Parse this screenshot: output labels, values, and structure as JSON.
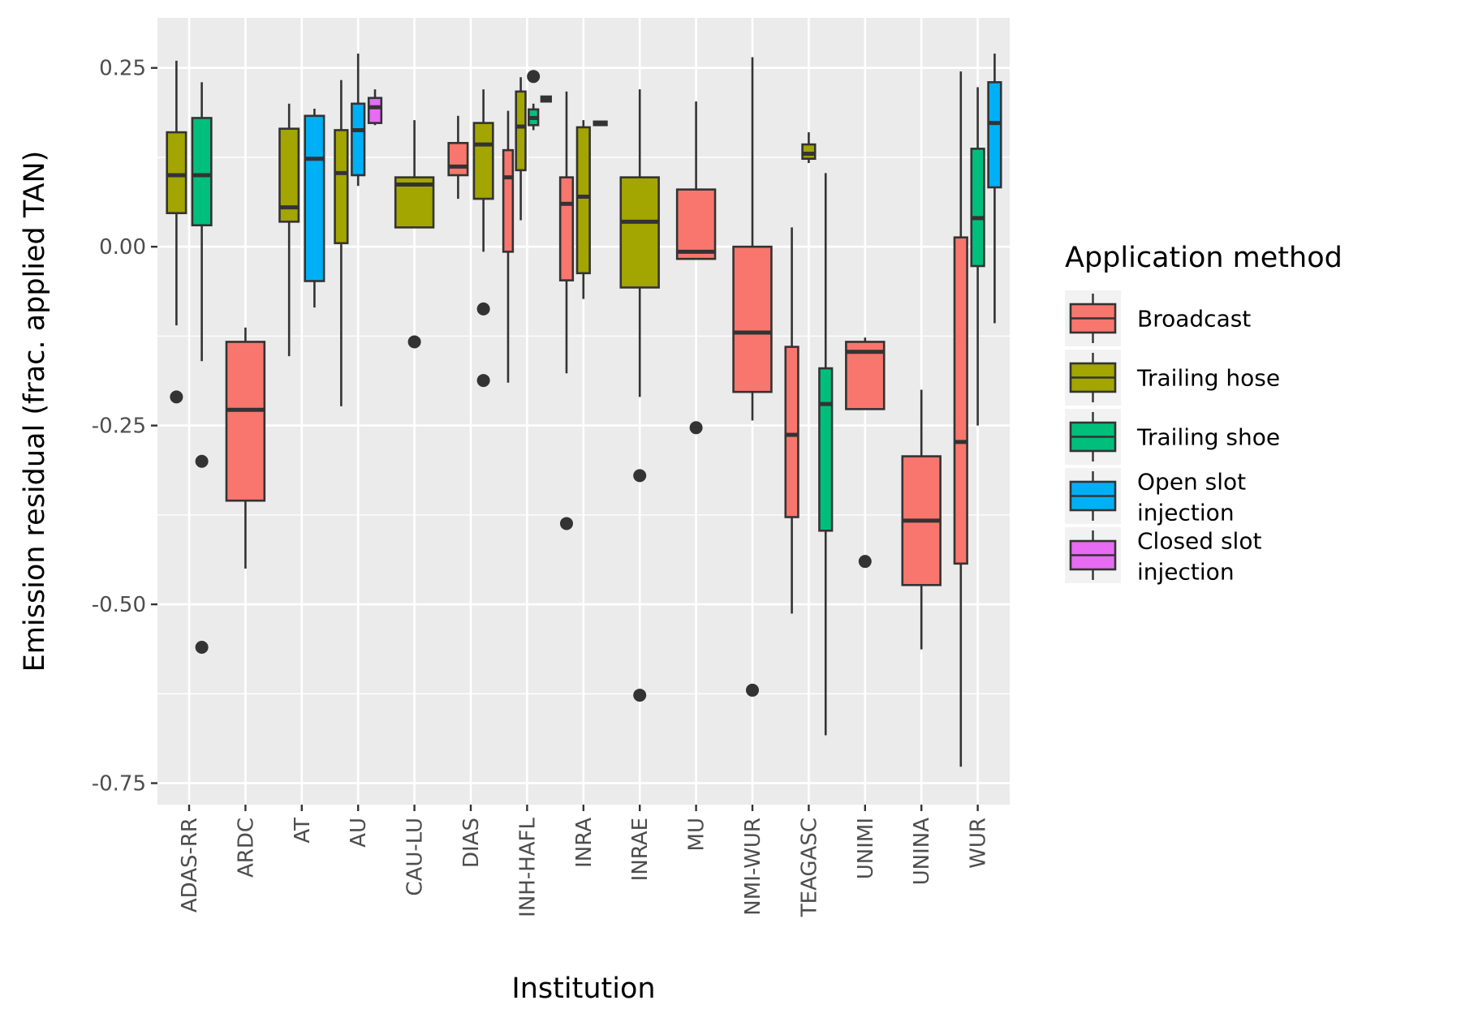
{
  "chart_data": {
    "type": "boxplot",
    "xlabel": "Institution",
    "ylabel": "Emission residual (frac. applied TAN)",
    "ylim": [
      -0.78,
      0.32
    ],
    "yticks": [
      0.25,
      0.0,
      -0.25,
      -0.5,
      -0.75
    ],
    "ytick_labels": [
      "0.25",
      "0.00",
      "-0.25",
      "-0.50",
      "-0.75"
    ],
    "grid": true,
    "legend_position": "right",
    "legend": {
      "title": "Application method",
      "entries": [
        {
          "key": "Broadcast",
          "label_lines": [
            "Broadcast"
          ],
          "color": "#F8766D"
        },
        {
          "key": "Trailing hose",
          "label_lines": [
            "Trailing hose"
          ],
          "color": "#A3A500"
        },
        {
          "key": "Trailing shoe",
          "label_lines": [
            "Trailing shoe"
          ],
          "color": "#00BF7D"
        },
        {
          "key": "Open slot injection",
          "label_lines": [
            "Open slot",
            "injection"
          ],
          "color": "#00B0F6"
        },
        {
          "key": "Closed slot injection",
          "label_lines": [
            "Closed slot",
            "injection"
          ],
          "color": "#E76BF3"
        }
      ]
    },
    "categories": [
      "ADAS-RR",
      "ARDC",
      "AT",
      "AU",
      "CAU-LU",
      "DIAS",
      "INH-HAFL",
      "INRA",
      "INRAE",
      "MU",
      "NMI-WUR",
      "TEAGASC",
      "UNIMI",
      "UNINA",
      "WUR"
    ],
    "groups": [
      {
        "category": "ADAS-RR",
        "boxes": [
          {
            "series": "Trailing hose",
            "whisker_low": -0.11,
            "q1": 0.047,
            "median": 0.1,
            "q3": 0.16,
            "whisker_high": 0.26,
            "outliers": [
              -0.21
            ]
          },
          {
            "series": "Trailing shoe",
            "whisker_low": -0.16,
            "q1": 0.03,
            "median": 0.1,
            "q3": 0.18,
            "whisker_high": 0.23,
            "outliers": [
              -0.3,
              -0.56
            ]
          }
        ]
      },
      {
        "category": "ARDC",
        "boxes": [
          {
            "series": "Broadcast",
            "whisker_low": -0.45,
            "q1": -0.355,
            "median": -0.228,
            "q3": -0.133,
            "whisker_high": -0.113,
            "outliers": []
          }
        ]
      },
      {
        "category": "AT",
        "boxes": [
          {
            "series": "Trailing hose",
            "whisker_low": -0.153,
            "q1": 0.035,
            "median": 0.055,
            "q3": 0.165,
            "whisker_high": 0.2,
            "outliers": []
          },
          {
            "series": "Open slot injection",
            "whisker_low": -0.085,
            "q1": -0.048,
            "median": 0.123,
            "q3": 0.183,
            "whisker_high": 0.193,
            "outliers": []
          }
        ]
      },
      {
        "category": "AU",
        "boxes": [
          {
            "series": "Trailing hose",
            "whisker_low": -0.223,
            "q1": 0.005,
            "median": 0.103,
            "q3": 0.163,
            "whisker_high": 0.233,
            "outliers": []
          },
          {
            "series": "Open slot injection",
            "whisker_low": 0.085,
            "q1": 0.1,
            "median": 0.163,
            "q3": 0.2,
            "whisker_high": 0.27,
            "outliers": []
          },
          {
            "series": "Closed slot injection",
            "whisker_low": 0.17,
            "q1": 0.173,
            "median": 0.195,
            "q3": 0.208,
            "whisker_high": 0.22,
            "outliers": []
          }
        ]
      },
      {
        "category": "CAU-LU",
        "boxes": [
          {
            "series": "Trailing hose",
            "whisker_low": 0.027,
            "q1": 0.027,
            "median": 0.087,
            "q3": 0.097,
            "whisker_high": 0.177,
            "outliers": [
              -0.133
            ]
          }
        ]
      },
      {
        "category": "DIAS",
        "boxes": [
          {
            "series": "Broadcast",
            "whisker_low": 0.067,
            "q1": 0.1,
            "median": 0.112,
            "q3": 0.145,
            "whisker_high": 0.183,
            "outliers": []
          },
          {
            "series": "Trailing hose",
            "whisker_low": -0.007,
            "q1": 0.067,
            "median": 0.143,
            "q3": 0.173,
            "whisker_high": 0.22,
            "outliers": [
              -0.087,
              -0.187
            ]
          }
        ]
      },
      {
        "category": "INH-HAFL",
        "boxes": [
          {
            "series": "Broadcast",
            "whisker_low": -0.19,
            "q1": -0.007,
            "median": 0.097,
            "q3": 0.135,
            "whisker_high": 0.19,
            "outliers": []
          },
          {
            "series": "Trailing hose",
            "whisker_low": 0.037,
            "q1": 0.107,
            "median": 0.168,
            "q3": 0.217,
            "whisker_high": 0.237,
            "outliers": []
          },
          {
            "series": "Trailing shoe",
            "whisker_low": 0.163,
            "q1": 0.17,
            "median": 0.18,
            "q3": 0.192,
            "whisker_high": 0.2,
            "outliers": [
              0.238
            ]
          },
          {
            "series": "Open slot injection",
            "whisker_low": 0.203,
            "q1": 0.203,
            "median": 0.207,
            "q3": 0.21,
            "whisker_high": 0.21,
            "outliers": []
          }
        ]
      },
      {
        "category": "INRA",
        "boxes": [
          {
            "series": "Broadcast",
            "whisker_low": -0.177,
            "q1": -0.047,
            "median": 0.06,
            "q3": 0.097,
            "whisker_high": 0.217,
            "outliers": [
              -0.387
            ]
          },
          {
            "series": "Trailing hose",
            "whisker_low": -0.073,
            "q1": -0.037,
            "median": 0.07,
            "q3": 0.167,
            "whisker_high": 0.177,
            "outliers": []
          },
          {
            "series": "Trailing shoe",
            "whisker_low": 0.17,
            "q1": 0.17,
            "median": 0.172,
            "q3": 0.175,
            "whisker_high": 0.175,
            "outliers": []
          }
        ]
      },
      {
        "category": "INRAE",
        "boxes": [
          {
            "series": "Trailing hose",
            "whisker_low": -0.21,
            "q1": -0.057,
            "median": 0.035,
            "q3": 0.097,
            "whisker_high": 0.22,
            "outliers": [
              -0.32,
              -0.627
            ]
          }
        ]
      },
      {
        "category": "MU",
        "boxes": [
          {
            "series": "Broadcast",
            "whisker_low": -0.017,
            "q1": -0.017,
            "median": -0.007,
            "q3": 0.08,
            "whisker_high": 0.203,
            "outliers": [
              -0.253
            ]
          }
        ]
      },
      {
        "category": "NMI-WUR",
        "boxes": [
          {
            "series": "Broadcast",
            "whisker_low": -0.243,
            "q1": -0.203,
            "median": -0.12,
            "q3": -0.0,
            "whisker_high": 0.265,
            "outliers": [
              -0.62
            ]
          }
        ]
      },
      {
        "category": "TEAGASC",
        "boxes": [
          {
            "series": "Broadcast",
            "whisker_low": -0.513,
            "q1": -0.378,
            "median": -0.263,
            "q3": -0.14,
            "whisker_high": 0.027,
            "outliers": []
          },
          {
            "series": "Trailing hose",
            "whisker_low": 0.117,
            "q1": 0.123,
            "median": 0.13,
            "q3": 0.143,
            "whisker_high": 0.16,
            "outliers": []
          },
          {
            "series": "Trailing shoe",
            "whisker_low": -0.683,
            "q1": -0.397,
            "median": -0.22,
            "q3": -0.17,
            "whisker_high": 0.103,
            "outliers": []
          }
        ]
      },
      {
        "category": "UNIMI",
        "boxes": [
          {
            "series": "Broadcast",
            "whisker_low": -0.227,
            "q1": -0.227,
            "median": -0.147,
            "q3": -0.133,
            "whisker_high": -0.127,
            "outliers": [
              -0.44
            ]
          }
        ]
      },
      {
        "category": "UNINA",
        "boxes": [
          {
            "series": "Broadcast",
            "whisker_low": -0.563,
            "q1": -0.473,
            "median": -0.383,
            "q3": -0.293,
            "whisker_high": -0.2,
            "outliers": []
          }
        ]
      },
      {
        "category": "WUR",
        "boxes": [
          {
            "series": "Broadcast",
            "whisker_low": -0.727,
            "q1": -0.443,
            "median": -0.273,
            "q3": 0.013,
            "whisker_high": 0.245,
            "outliers": []
          },
          {
            "series": "Trailing shoe",
            "whisker_low": -0.25,
            "q1": -0.027,
            "median": 0.04,
            "q3": 0.137,
            "whisker_high": 0.223,
            "outliers": []
          },
          {
            "series": "Open slot injection",
            "whisker_low": -0.107,
            "q1": 0.083,
            "median": 0.173,
            "q3": 0.23,
            "whisker_high": 0.27,
            "outliers": []
          }
        ]
      }
    ]
  }
}
